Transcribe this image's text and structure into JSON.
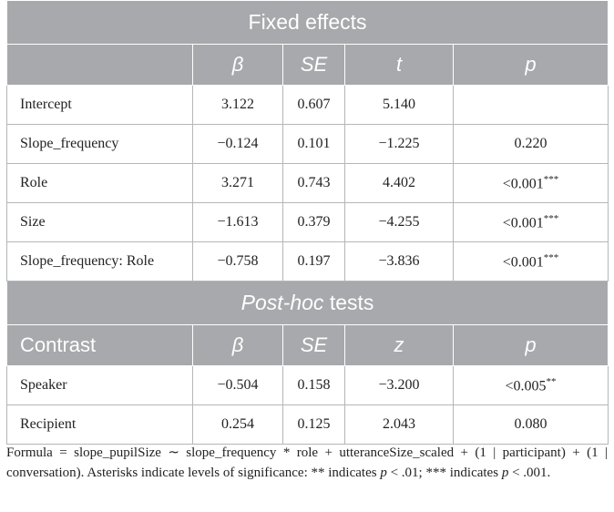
{
  "fixed_effects": {
    "title": "Fixed effects",
    "columns": [
      "β",
      "SE",
      "t",
      "p"
    ],
    "rows": [
      {
        "label": "Intercept",
        "values": [
          "3.122",
          "0.607",
          "5.140"
        ]
      },
      {
        "label": "Slope_frequency",
        "values": [
          "−0.124",
          "0.101",
          "−1.225"
        ],
        "p": "0.220"
      },
      {
        "label": "Role",
        "values": [
          "3.271",
          "0.743",
          "4.402"
        ],
        "p": "<0.001",
        "stars": "***"
      },
      {
        "label": "Size",
        "values": [
          "−1.613",
          "0.379",
          "−4.255"
        ],
        "p": "<0.001",
        "stars": "***"
      },
      {
        "label": "Slope_frequency: Role",
        "values": [
          "−0.758",
          "0.197",
          "−3.836"
        ],
        "p": "<0.001",
        "stars": "***"
      }
    ]
  },
  "post_hoc": {
    "title_italic": "Post-hoc",
    "title_rest": "tests",
    "columns": [
      "Contrast",
      "β",
      "SE",
      "z",
      "p"
    ],
    "rows": [
      {
        "label": "Speaker",
        "values": [
          "−0.504",
          "0.158",
          "−3.200"
        ],
        "p": "<0.005",
        "stars": "**"
      },
      {
        "label": "Recipient",
        "values": [
          "0.254",
          "0.125",
          "2.043"
        ],
        "p": "0.080"
      }
    ]
  },
  "footnote": {
    "formula": "Formula = slope_pupilSize ∼ slope_frequency * role + utteranceSize_scaled + (1 | participant) + (1 | conversation).",
    "intro": "Asterisks indicate levels of significance:",
    "a": "** indicates",
    "ap": "p",
    "at": "< .01;",
    "b": "*** indicates",
    "bp": "p",
    "bt": "< .001."
  }
}
